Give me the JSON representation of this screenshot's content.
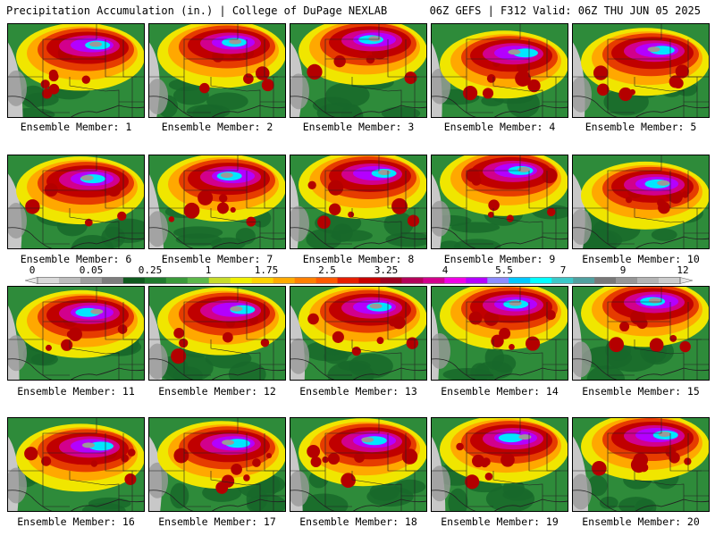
{
  "header": {
    "left_title": "Precipitation Accumulation (in.) | College of DuPage NEXLAB",
    "right_title": "06Z GEFS | F312 Valid: 06Z THU JUN 05 2025"
  },
  "colorbar": {
    "tick_labels": [
      "0",
      "0.05",
      "0.25",
      "1",
      "1.75",
      "2.5",
      "3.25",
      "4",
      "5.5",
      "7",
      "9",
      "12"
    ],
    "colors": [
      "#d9d9d9",
      "#bdbdbd",
      "#9e9e9e",
      "#7d7d7d",
      "#0f5a1e",
      "#1f7a2d",
      "#3a9a3a",
      "#5cb84a",
      "#c8dc2a",
      "#f0f000",
      "#ffd200",
      "#ffaa00",
      "#ff8000",
      "#ff5a00",
      "#e61e00",
      "#c80000",
      "#a0001e",
      "#b4005a",
      "#d2008c",
      "#f000e6",
      "#b400ff",
      "#8c8cff",
      "#00c8ff",
      "#00ffff",
      "#3cc8c8",
      "#50a0a0",
      "#787878",
      "#969696",
      "#b4b4b4",
      "#cccccc"
    ]
  },
  "members": [
    {
      "label": "Ensemble Member: 1"
    },
    {
      "label": "Ensemble Member: 2"
    },
    {
      "label": "Ensemble Member: 3"
    },
    {
      "label": "Ensemble Member: 4"
    },
    {
      "label": "Ensemble Member: 5"
    },
    {
      "label": "Ensemble Member: 6"
    },
    {
      "label": "Ensemble Member: 7"
    },
    {
      "label": "Ensemble Member: 8"
    },
    {
      "label": "Ensemble Member: 9"
    },
    {
      "label": "Ensemble Member: 10"
    },
    {
      "label": "Ensemble Member: 11"
    },
    {
      "label": "Ensemble Member: 12"
    },
    {
      "label": "Ensemble Member: 13"
    },
    {
      "label": "Ensemble Member: 14"
    },
    {
      "label": "Ensemble Member: 15"
    },
    {
      "label": "Ensemble Member: 16"
    },
    {
      "label": "Ensemble Member: 17"
    },
    {
      "label": "Ensemble Member: 18"
    },
    {
      "label": "Ensemble Member: 19"
    },
    {
      "label": "Ensemble Member: 20"
    }
  ]
}
